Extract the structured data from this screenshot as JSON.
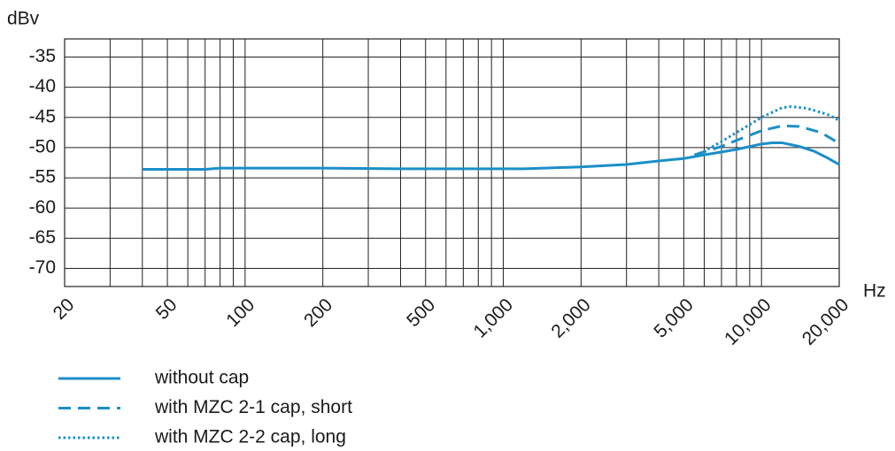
{
  "chart_data": {
    "type": "line",
    "y_label": "dBv",
    "x_label": "Hz",
    "log_x": true,
    "xlim": [
      20,
      20000
    ],
    "ylim": [
      -73,
      -32
    ],
    "xticks": [
      20,
      50,
      100,
      200,
      500,
      {
        "value": 1000,
        "label": "1,000"
      },
      {
        "value": 2000,
        "label": "2,000"
      },
      {
        "value": 5000,
        "label": "5,000"
      },
      {
        "value": 10000,
        "label": "10,000"
      },
      {
        "value": 20000,
        "label": "20,000"
      }
    ],
    "xgrid": [
      30,
      40,
      60,
      70,
      80,
      90,
      300,
      400,
      600,
      700,
      800,
      900,
      3000,
      4000,
      6000,
      7000,
      8000,
      9000
    ],
    "yticks": [
      -35,
      -40,
      -45,
      -50,
      -55,
      -60,
      -65,
      -70
    ],
    "grid": true,
    "series": [
      {
        "name": "without cap",
        "color": "#1a8fc8",
        "dash": "solid",
        "x": [
          40,
          70,
          80,
          200,
          400,
          1200,
          2000,
          3000,
          4000,
          5000,
          6000,
          8000,
          10000,
          11000,
          12000,
          14000,
          16000,
          18000,
          20000
        ],
        "values": [
          -53.6,
          -53.6,
          -53.4,
          -53.4,
          -53.5,
          -53.5,
          -53.2,
          -52.8,
          -52.2,
          -51.8,
          -51.2,
          -50.3,
          -49.4,
          -49.2,
          -49.2,
          -49.8,
          -50.6,
          -51.7,
          -52.8
        ]
      },
      {
        "name": "with MZC 2-1 cap, short",
        "color": "#1a8fc8",
        "dash": "dashed",
        "x": [
          5500,
          7000,
          8000,
          10000,
          12000,
          14000,
          17000,
          20000
        ],
        "values": [
          -51.2,
          -49.8,
          -48.8,
          -47.2,
          -46.4,
          -46.5,
          -47.5,
          -49.3
        ]
      },
      {
        "name": "with MZC 2-2 cap, long",
        "color": "#1a8fc8",
        "dash": "dotted",
        "x": [
          5500,
          6000,
          7000,
          8000,
          10000,
          12000,
          13000,
          15000,
          18000,
          20000
        ],
        "values": [
          -51.3,
          -50.6,
          -49,
          -47.5,
          -45,
          -43.4,
          -43.2,
          -43.5,
          -44.5,
          -45.5
        ]
      }
    ]
  }
}
